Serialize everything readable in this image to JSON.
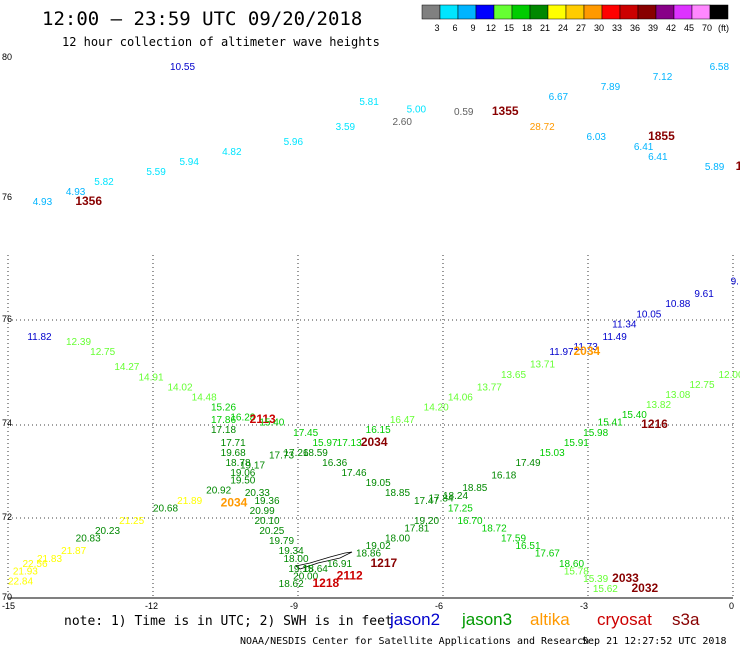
{
  "header": {
    "title": "12:00 — 23:59 UTC 09/20/2018",
    "subtitle": "12 hour collection of altimeter wave heights"
  },
  "legend": {
    "unit": "(ft)",
    "bins": [
      {
        "label": "3",
        "color": "#808080"
      },
      {
        "label": "6",
        "color": "#00e5ff"
      },
      {
        "label": "9",
        "color": "#00b4ff"
      },
      {
        "label": "12",
        "color": "#0000ff"
      },
      {
        "label": "15",
        "color": "#66ff33"
      },
      {
        "label": "18",
        "color": "#00cc00"
      },
      {
        "label": "21",
        "color": "#008800"
      },
      {
        "label": "24",
        "color": "#ffff00"
      },
      {
        "label": "27",
        "color": "#ffcc00"
      },
      {
        "label": "30",
        "color": "#ff9900"
      },
      {
        "label": "33",
        "color": "#ff0000"
      },
      {
        "label": "36",
        "color": "#cc0000"
      },
      {
        "label": "39",
        "color": "#880000"
      },
      {
        "label": "42",
        "color": "#880088"
      },
      {
        "label": "45",
        "color": "#dd33ff"
      },
      {
        "label": "70",
        "color": "#ff88ff"
      },
      {
        "label": "",
        "color": "#000000"
      }
    ]
  },
  "axes": {
    "x_ticks": [
      "-15",
      "-12",
      "-9",
      "-6",
      "-3",
      "0"
    ],
    "y_ticks_upper": [
      "80",
      "76"
    ],
    "y_ticks_lower": [
      "76",
      "74",
      "72",
      "70"
    ]
  },
  "footer": {
    "note": "note: 1) Time is in UTC; 2) SWH is in feet",
    "satellites": [
      {
        "name": "jason2",
        "color": "#0000cc"
      },
      {
        "name": "jason3",
        "color": "#009900"
      },
      {
        "name": "altika",
        "color": "#ff9900"
      },
      {
        "name": "cryosat",
        "color": "#cc0000"
      },
      {
        "name": "s3a",
        "color": "#880000"
      }
    ],
    "credit": "NOAA/NESDIS Center for Satellite Applications and Research",
    "timestamp": "Sep 21 12:27:52 UTC 2018"
  },
  "tracks": {
    "upper": [
      {
        "label": "10.55",
        "color": "#0000cc",
        "lon": -12.0,
        "lat": 79.8
      },
      {
        "label": "6.58",
        "color": "#00b4ff",
        "lon": -0.6,
        "lat": 79.8
      },
      {
        "label": "7.12",
        "color": "#00b4ff",
        "lon": -1.8,
        "lat": 79.6
      },
      {
        "label": "7.89",
        "color": "#00b4ff",
        "lon": -2.9,
        "lat": 79.4
      },
      {
        "label": "6.67",
        "color": "#00b4ff",
        "lon": -4.0,
        "lat": 79.2
      },
      {
        "label": "1355",
        "color": "#880000",
        "lon": -5.2,
        "lat": 78.9,
        "bold": true
      },
      {
        "label": "0.59",
        "color": "#606060",
        "lon": -6.0,
        "lat": 78.9
      },
      {
        "label": "5.00",
        "color": "#00e5ff",
        "lon": -7.0,
        "lat": 78.95
      },
      {
        "label": "5.81",
        "color": "#00e5ff",
        "lon": -8.0,
        "lat": 79.1
      },
      {
        "label": "2.60",
        "color": "#606060",
        "lon": -7.3,
        "lat": 78.7
      },
      {
        "label": "3.59",
        "color": "#00e5ff",
        "lon": -8.5,
        "lat": 78.6
      },
      {
        "label": "28.72",
        "color": "#ff9900",
        "lon": -4.4,
        "lat": 78.6
      },
      {
        "label": "6.03",
        "color": "#00b4ff",
        "lon": -3.2,
        "lat": 78.4
      },
      {
        "label": "1855",
        "color": "#880000",
        "lon": -1.9,
        "lat": 78.4,
        "bold": true
      },
      {
        "label": "6.41",
        "color": "#00b4ff",
        "lon": -2.2,
        "lat": 78.2
      },
      {
        "label": "6.41",
        "color": "#00b4ff",
        "lon": -1.9,
        "lat": 78.0
      },
      {
        "label": "5.89",
        "color": "#00b4ff",
        "lon": -0.7,
        "lat": 77.8
      },
      {
        "label": "1",
        "color": "#880000",
        "lon": -0.05,
        "lat": 77.8,
        "bold": true
      },
      {
        "label": "5.96",
        "color": "#00e5ff",
        "lon": -9.6,
        "lat": 78.3
      },
      {
        "label": "4.82",
        "color": "#00e5ff",
        "lon": -10.9,
        "lat": 78.1
      },
      {
        "label": "5.94",
        "color": "#00e5ff",
        "lon": -11.8,
        "lat": 77.9
      },
      {
        "label": "5.59",
        "color": "#00e5ff",
        "lon": -12.5,
        "lat": 77.7
      },
      {
        "label": "5.82",
        "color": "#00e5ff",
        "lon": -13.6,
        "lat": 77.5
      },
      {
        "label": "4.93",
        "color": "#00b4ff",
        "lon": -14.2,
        "lat": 77.3
      },
      {
        "label": "4.93",
        "color": "#00b4ff",
        "lon": -14.9,
        "lat": 77.1
      },
      {
        "label": "1356",
        "color": "#880000",
        "lon": -14.0,
        "lat": 77.1,
        "bold": true
      }
    ],
    "lower": [
      {
        "label": "11.82",
        "color": "#0000cc",
        "lon": -14.6,
        "lat": 75.6
      },
      {
        "label": "12.39",
        "color": "#66ff33",
        "lon": -13.8,
        "lat": 75.5
      },
      {
        "label": "12.75",
        "color": "#66ff33",
        "lon": -13.3,
        "lat": 75.3
      },
      {
        "label": "14.27",
        "color": "#66ff33",
        "lon": -12.8,
        "lat": 75.0
      },
      {
        "label": "14.91",
        "color": "#66ff33",
        "lon": -12.3,
        "lat": 74.8
      },
      {
        "label": "14.02",
        "color": "#66ff33",
        "lon": -11.7,
        "lat": 74.6
      },
      {
        "label": "14.48",
        "color": "#66ff33",
        "lon": -11.2,
        "lat": 74.4
      },
      {
        "label": "15.26",
        "color": "#00cc00",
        "lon": -10.8,
        "lat": 74.2
      },
      {
        "label": "16.28",
        "color": "#00cc00",
        "lon": -10.4,
        "lat": 74.0
      },
      {
        "label": "17.86",
        "color": "#00cc00",
        "lon": -10.8,
        "lat": 73.95
      },
      {
        "label": "2113",
        "color": "#cc0000",
        "lon": -10.0,
        "lat": 73.95,
        "bold": true
      },
      {
        "label": "15.40",
        "color": "#00cc00",
        "lon": -9.8,
        "lat": 73.9
      },
      {
        "label": "17.18",
        "color": "#008800",
        "lon": -10.8,
        "lat": 73.75
      },
      {
        "label": "17.45",
        "color": "#00cc00",
        "lon": -9.1,
        "lat": 73.7
      },
      {
        "label": "17.71",
        "color": "#008800",
        "lon": -10.6,
        "lat": 73.5
      },
      {
        "label": "15.97",
        "color": "#00cc00",
        "lon": -8.7,
        "lat": 73.5
      },
      {
        "label": "17.13",
        "color": "#00cc00",
        "lon": -8.2,
        "lat": 73.5
      },
      {
        "label": "2034",
        "color": "#880000",
        "lon": -7.7,
        "lat": 73.5,
        "bold": true
      },
      {
        "label": "16.15",
        "color": "#00cc00",
        "lon": -7.6,
        "lat": 73.75
      },
      {
        "label": "16.47",
        "color": "#66ff33",
        "lon": -7.1,
        "lat": 73.95
      },
      {
        "label": "14.20",
        "color": "#66ff33",
        "lon": -6.4,
        "lat": 74.2
      },
      {
        "label": "14.06",
        "color": "#66ff33",
        "lon": -5.9,
        "lat": 74.4
      },
      {
        "label": "13.77",
        "color": "#66ff33",
        "lon": -5.3,
        "lat": 74.6
      },
      {
        "label": "13.65",
        "color": "#66ff33",
        "lon": -4.8,
        "lat": 74.85
      },
      {
        "label": "13.71",
        "color": "#66ff33",
        "lon": -4.2,
        "lat": 75.05
      },
      {
        "label": "11.97",
        "color": "#0000cc",
        "lon": -3.8,
        "lat": 75.3
      },
      {
        "label": "11.73",
        "color": "#0000cc",
        "lon": -3.3,
        "lat": 75.4
      },
      {
        "label": "2034",
        "color": "#ff9900",
        "lon": -3.3,
        "lat": 75.3,
        "bold": true
      },
      {
        "label": "11.49",
        "color": "#0000cc",
        "lon": -2.7,
        "lat": 75.6
      },
      {
        "label": "11.34",
        "color": "#0000cc",
        "lon": -2.5,
        "lat": 75.85
      },
      {
        "label": "10.05",
        "color": "#0000cc",
        "lon": -2.0,
        "lat": 76.05
      },
      {
        "label": "10.88",
        "color": "#0000cc",
        "lon": -1.4,
        "lat": 76.25
      },
      {
        "label": "9.61",
        "color": "#0000cc",
        "lon": -0.8,
        "lat": 76.45
      },
      {
        "label": "9.",
        "color": "#0000cc",
        "lon": -0.05,
        "lat": 76.7
      },
      {
        "label": "12.00",
        "color": "#66ff33",
        "lon": -0.3,
        "lat": 74.85
      },
      {
        "label": "12.75",
        "color": "#66ff33",
        "lon": -0.9,
        "lat": 74.65
      },
      {
        "label": "13.08",
        "color": "#66ff33",
        "lon": -1.4,
        "lat": 74.45
      },
      {
        "label": "13.82",
        "color": "#66ff33",
        "lon": -1.8,
        "lat": 74.25
      },
      {
        "label": "15.40",
        "color": "#00cc00",
        "lon": -2.3,
        "lat": 74.05
      },
      {
        "label": "1216",
        "color": "#880000",
        "lon": -1.9,
        "lat": 73.85,
        "bold": true
      },
      {
        "label": "15.41",
        "color": "#00cc00",
        "lon": -2.8,
        "lat": 73.9
      },
      {
        "label": "15.98",
        "color": "#00cc00",
        "lon": -3.1,
        "lat": 73.7
      },
      {
        "label": "15.91",
        "color": "#00cc00",
        "lon": -3.5,
        "lat": 73.5
      },
      {
        "label": "15.03",
        "color": "#00cc00",
        "lon": -4.0,
        "lat": 73.3
      },
      {
        "label": "17.49",
        "color": "#008800",
        "lon": -4.5,
        "lat": 73.1
      },
      {
        "label": "16.18",
        "color": "#008800",
        "lon": -5.0,
        "lat": 72.85
      },
      {
        "label": "18.85",
        "color": "#008800",
        "lon": -5.6,
        "lat": 72.6
      },
      {
        "label": "18.24",
        "color": "#008800",
        "lon": -6.0,
        "lat": 72.45
      },
      {
        "label": "17.84",
        "color": "#008800",
        "lon": -6.3,
        "lat": 72.4
      },
      {
        "label": "17.47",
        "color": "#008800",
        "lon": -6.6,
        "lat": 72.35
      },
      {
        "label": "18.85",
        "color": "#008800",
        "lon": -7.2,
        "lat": 72.5
      },
      {
        "label": "19.05",
        "color": "#008800",
        "lon": -7.6,
        "lat": 72.7
      },
      {
        "label": "17.46",
        "color": "#008800",
        "lon": -8.1,
        "lat": 72.9
      },
      {
        "label": "16.36",
        "color": "#008800",
        "lon": -8.5,
        "lat": 73.1
      },
      {
        "label": "18.59",
        "color": "#008800",
        "lon": -8.9,
        "lat": 73.3
      },
      {
        "label": "17.26",
        "color": "#008800",
        "lon": -9.3,
        "lat": 73.3
      },
      {
        "label": "17.73",
        "color": "#008800",
        "lon": -9.6,
        "lat": 73.25
      },
      {
        "label": "19.68",
        "color": "#008800",
        "lon": -10.6,
        "lat": 73.3
      },
      {
        "label": "18.78",
        "color": "#008800",
        "lon": -10.5,
        "lat": 73.1
      },
      {
        "label": "19.17",
        "color": "#008800",
        "lon": -10.2,
        "lat": 73.05
      },
      {
        "label": "19.06",
        "color": "#008800",
        "lon": -10.4,
        "lat": 72.9
      },
      {
        "label": "19.50",
        "color": "#008800",
        "lon": -10.4,
        "lat": 72.75
      },
      {
        "label": "20.92",
        "color": "#008800",
        "lon": -10.9,
        "lat": 72.55
      },
      {
        "label": "20.33",
        "color": "#008800",
        "lon": -10.1,
        "lat": 72.5
      },
      {
        "label": "21.89",
        "color": "#ffff00",
        "lon": -11.5,
        "lat": 72.35
      },
      {
        "label": "2034",
        "color": "#ff9900",
        "lon": -10.6,
        "lat": 72.3,
        "bold": true
      },
      {
        "label": "19.36",
        "color": "#008800",
        "lon": -9.9,
        "lat": 72.35
      },
      {
        "label": "20.68",
        "color": "#008800",
        "lon": -12.0,
        "lat": 72.2
      },
      {
        "label": "20.99",
        "color": "#008800",
        "lon": -10.0,
        "lat": 72.15
      },
      {
        "label": "21.25",
        "color": "#ffff00",
        "lon": -12.7,
        "lat": 71.95
      },
      {
        "label": "20.10",
        "color": "#008800",
        "lon": -9.9,
        "lat": 71.95
      },
      {
        "label": "20.23",
        "color": "#008800",
        "lon": -13.2,
        "lat": 71.75
      },
      {
        "label": "20.25",
        "color": "#008800",
        "lon": -9.8,
        "lat": 71.75
      },
      {
        "label": "20.83",
        "color": "#008800",
        "lon": -13.6,
        "lat": 71.6
      },
      {
        "label": "19.79",
        "color": "#008800",
        "lon": -9.6,
        "lat": 71.55
      },
      {
        "label": "21.87",
        "color": "#ffff00",
        "lon": -13.9,
        "lat": 71.35
      },
      {
        "label": "19.34",
        "color": "#008800",
        "lon": -9.4,
        "lat": 71.35
      },
      {
        "label": "21.83",
        "color": "#ffff00",
        "lon": -14.4,
        "lat": 71.2
      },
      {
        "label": "18.00",
        "color": "#008800",
        "lon": -9.3,
        "lat": 71.2
      },
      {
        "label": "22.56",
        "color": "#ffff00",
        "lon": -14.7,
        "lat": 71.1
      },
      {
        "label": "19.15",
        "color": "#008800",
        "lon": -9.2,
        "lat": 71.0
      },
      {
        "label": "21.93",
        "color": "#ffff00",
        "lon": -14.9,
        "lat": 70.95
      },
      {
        "label": "18.64",
        "color": "#008800",
        "lon": -8.9,
        "lat": 71.0
      },
      {
        "label": "22.84",
        "color": "#ffff00",
        "lon": -15.0,
        "lat": 70.75
      },
      {
        "label": "20.00",
        "color": "#008800",
        "lon": -9.1,
        "lat": 70.85
      },
      {
        "label": "18.62",
        "color": "#008800",
        "lon": -9.4,
        "lat": 70.7
      },
      {
        "label": "1218",
        "color": "#cc0000",
        "lon": -8.7,
        "lat": 70.7,
        "bold": true
      },
      {
        "label": "2112",
        "color": "#cc0000",
        "lon": -8.2,
        "lat": 70.85,
        "bold": true
      },
      {
        "label": "16.91",
        "color": "#008800",
        "lon": -8.4,
        "lat": 71.1
      },
      {
        "label": "1217",
        "color": "#880000",
        "lon": -7.5,
        "lat": 71.1,
        "bold": true
      },
      {
        "label": "18.86",
        "color": "#008800",
        "lon": -7.8,
        "lat": 71.3
      },
      {
        "label": "19.02",
        "color": "#008800",
        "lon": -7.6,
        "lat": 71.45
      },
      {
        "label": "18.00",
        "color": "#008800",
        "lon": -7.2,
        "lat": 71.6
      },
      {
        "label": "17.81",
        "color": "#008800",
        "lon": -6.8,
        "lat": 71.8
      },
      {
        "label": "19.20",
        "color": "#008800",
        "lon": -6.6,
        "lat": 71.95
      },
      {
        "label": "16.70",
        "color": "#00cc00",
        "lon": -5.7,
        "lat": 71.95
      },
      {
        "label": "17.25",
        "color": "#00cc00",
        "lon": -5.9,
        "lat": 72.2
      },
      {
        "label": "18.72",
        "color": "#00cc00",
        "lon": -5.2,
        "lat": 71.8
      },
      {
        "label": "17.59",
        "color": "#00cc00",
        "lon": -4.8,
        "lat": 71.6
      },
      {
        "label": "16.51",
        "color": "#00cc00",
        "lon": -4.5,
        "lat": 71.45
      },
      {
        "label": "17.67",
        "color": "#00cc00",
        "lon": -4.1,
        "lat": 71.3
      },
      {
        "label": "18.60",
        "color": "#00cc00",
        "lon": -3.6,
        "lat": 71.1
      },
      {
        "label": "15.78",
        "color": "#66ff33",
        "lon": -3.5,
        "lat": 70.95
      },
      {
        "label": "15.39",
        "color": "#66ff33",
        "lon": -3.1,
        "lat": 70.8
      },
      {
        "label": "2033",
        "color": "#880000",
        "lon": -2.5,
        "lat": 70.8,
        "bold": true
      },
      {
        "label": "15.62",
        "color": "#66ff33",
        "lon": -2.9,
        "lat": 70.6
      },
      {
        "label": "2032",
        "color": "#880000",
        "lon": -2.1,
        "lat": 70.6,
        "bold": true
      }
    ]
  }
}
